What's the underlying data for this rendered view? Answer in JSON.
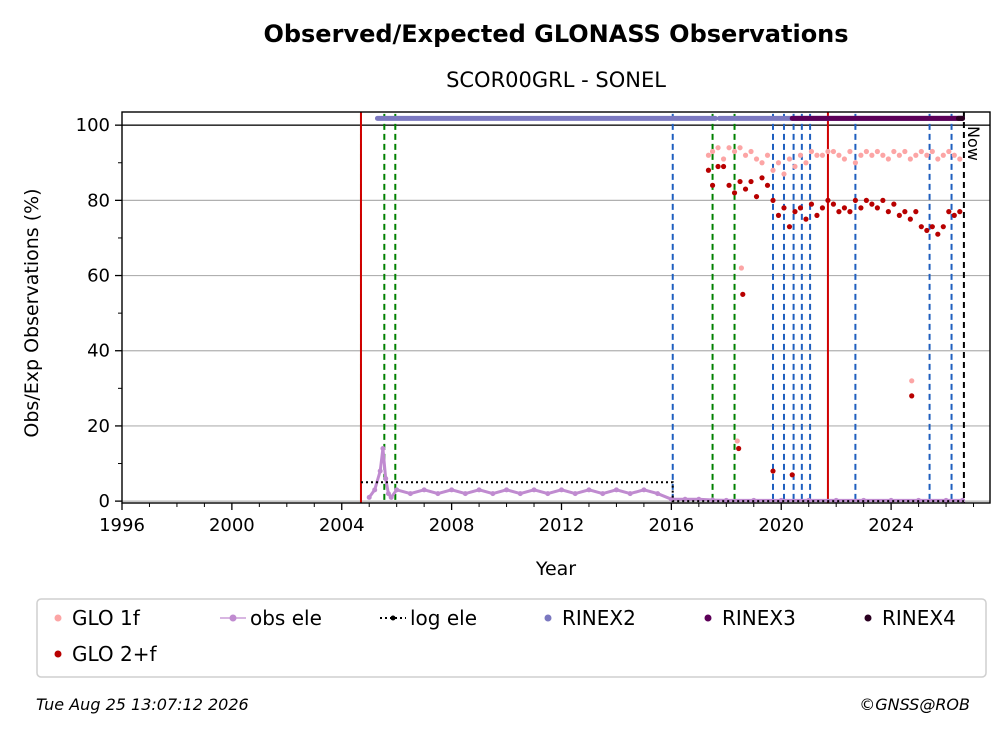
{
  "chart_data": {
    "type": "scatter",
    "title": "Observed/Expected GLONASS Observations",
    "subtitle": "SCOR00GRL - SONEL",
    "xlabel": "Year",
    "ylabel": "Obs/Exp Observations (%)",
    "xlim": [
      1996,
      2027.6
    ],
    "ylim": [
      -0.5,
      103.5
    ],
    "x_ticks": [
      1996,
      2000,
      2004,
      2008,
      2012,
      2016,
      2020,
      2024
    ],
    "y_ticks": [
      0,
      20,
      40,
      60,
      80,
      100
    ],
    "grid": "horizontal",
    "now_label": "Now",
    "now_x": 2026.65,
    "legend_position": "bottom",
    "footer_left": "Tue Aug 25 13:07:12 2026",
    "footer_right": "©GNSS@ROB",
    "colors": {
      "glo1f": "#fca5a5",
      "glo2f": "#b80000",
      "obs_ele": "#c08bd0",
      "log_ele": "#000000",
      "rinex2": "#7b78c0",
      "rinex3": "#5c0058",
      "rinex4": "#2a0020",
      "green_line": "#008000",
      "blue_line": "#1f5fbf",
      "red_line": "#d00000"
    },
    "legend": [
      {
        "label": "GLO 1f",
        "key": "glo1f",
        "marker": "dot"
      },
      {
        "label": "obs ele",
        "key": "obs_ele",
        "marker": "line-dot"
      },
      {
        "label": "log ele",
        "key": "log_ele",
        "marker": "dotted-line"
      },
      {
        "label": "RINEX2",
        "key": "rinex2",
        "marker": "dot"
      },
      {
        "label": "RINEX3",
        "key": "rinex3",
        "marker": "dot"
      },
      {
        "label": "RINEX4",
        "key": "rinex4",
        "marker": "dot"
      },
      {
        "label": "GLO 2+f",
        "key": "glo2f",
        "marker": "dot"
      }
    ],
    "vertical_lines": {
      "green": [
        2004.7,
        2005.55,
        2005.95,
        2017.5,
        2018.3
      ],
      "blue": [
        2016.05,
        2019.7,
        2020.1,
        2020.45,
        2020.75,
        2021.05,
        2022.7,
        2025.4,
        2026.2
      ],
      "red": [
        2004.7,
        2021.7
      ],
      "now": 2026.65
    },
    "series": [
      {
        "name": "GLO 1f",
        "key": "glo1f",
        "x": [
          2017.35,
          2017.5,
          2017.7,
          2017.9,
          2018.1,
          2018.3,
          2018.5,
          2018.7,
          2018.9,
          2019.1,
          2019.3,
          2019.5,
          2019.7,
          2019.9,
          2020.1,
          2020.3,
          2020.5,
          2020.7,
          2020.9,
          2021.1,
          2021.3,
          2021.5,
          2021.7,
          2021.9,
          2022.1,
          2022.3,
          2022.5,
          2022.7,
          2022.9,
          2023.1,
          2023.3,
          2023.5,
          2023.7,
          2023.9,
          2024.1,
          2024.3,
          2024.5,
          2024.7,
          2024.9,
          2025.1,
          2025.3,
          2025.5,
          2025.7,
          2025.9,
          2026.1,
          2026.3,
          2026.5,
          2018.4,
          2018.55,
          2024.75
        ],
        "y": [
          92,
          93,
          94,
          91,
          94,
          93,
          94,
          92,
          93,
          91,
          90,
          92,
          88,
          90,
          87,
          91,
          89,
          92,
          90,
          93,
          92,
          92,
          93,
          93,
          92,
          91,
          93,
          90,
          92,
          93,
          92,
          93,
          92,
          91,
          93,
          92,
          93,
          91,
          92,
          93,
          92,
          93,
          91,
          92,
          93,
          92,
          91,
          16,
          62,
          32
        ]
      },
      {
        "name": "GLO 2+f",
        "key": "glo2f",
        "x": [
          2017.35,
          2017.5,
          2017.7,
          2017.9,
          2018.1,
          2018.3,
          2018.5,
          2018.7,
          2018.9,
          2019.1,
          2019.3,
          2019.5,
          2019.7,
          2019.9,
          2020.1,
          2020.3,
          2020.5,
          2020.7,
          2020.9,
          2021.1,
          2021.3,
          2021.5,
          2021.7,
          2021.9,
          2022.1,
          2022.3,
          2022.5,
          2022.7,
          2022.9,
          2023.1,
          2023.3,
          2023.5,
          2023.7,
          2023.9,
          2024.1,
          2024.3,
          2024.5,
          2024.7,
          2024.9,
          2025.1,
          2025.3,
          2025.5,
          2025.7,
          2025.9,
          2026.1,
          2026.3,
          2026.5,
          2018.45,
          2018.6,
          2024.75,
          2019.7,
          2020.4
        ],
        "y": [
          88,
          84,
          89,
          89,
          84,
          82,
          85,
          83,
          85,
          81,
          86,
          84,
          80,
          76,
          78,
          73,
          77,
          78,
          75,
          79,
          76,
          78,
          80,
          79,
          77,
          78,
          77,
          80,
          78,
          80,
          79,
          78,
          80,
          77,
          79,
          76,
          77,
          75,
          77,
          73,
          72,
          73,
          71,
          73,
          77,
          76,
          77,
          14,
          55,
          28,
          8,
          7
        ]
      },
      {
        "name": "obs ele",
        "key": "obs_ele",
        "x": [
          2005.0,
          2005.2,
          2005.4,
          2005.5,
          2005.6,
          2005.7,
          2005.8,
          2006.0,
          2006.5,
          2007.0,
          2007.5,
          2008.0,
          2008.5,
          2009.0,
          2009.5,
          2010.0,
          2010.5,
          2011.0,
          2011.5,
          2012.0,
          2012.5,
          2013.0,
          2013.5,
          2014.0,
          2014.5,
          2015.0,
          2015.5,
          2016.0,
          2016.5,
          2017.0,
          2017.5,
          2018.0,
          2019.0,
          2020.0,
          2021.0,
          2022.0,
          2023.0,
          2024.0,
          2025.0,
          2026.0,
          2026.6
        ],
        "y": [
          1,
          3,
          8,
          14,
          6,
          2,
          1,
          3,
          2,
          3,
          2,
          3,
          2,
          3,
          2,
          3,
          2,
          3,
          2,
          3,
          2,
          3,
          2,
          3,
          2,
          3,
          2,
          0.5,
          0.5,
          0.5,
          0.3,
          0.2,
          0.2,
          0.2,
          0.2,
          0.2,
          0.2,
          0.2,
          0.2,
          0.2,
          0.2
        ]
      },
      {
        "name": "log ele",
        "key": "log_ele",
        "x": [
          2004.7,
          2005.9,
          2005.9,
          2016.05,
          2016.05,
          2026.65
        ],
        "y": [
          5,
          5,
          5,
          5,
          0,
          0
        ]
      },
      {
        "name": "RINEX2",
        "key": "rinex2",
        "x_range": [
          2005.3,
          2026.6
        ],
        "gaps": [
          [
            2017.6,
            2017.75
          ]
        ],
        "y": 101.8
      },
      {
        "name": "RINEX3",
        "key": "rinex3",
        "x_range": [
          2020.4,
          2026.6
        ],
        "y": 101.8
      },
      {
        "name": "RINEX4",
        "key": "rinex4",
        "x_range": [
          2026.45,
          2026.6
        ],
        "y": 101.8
      }
    ]
  }
}
